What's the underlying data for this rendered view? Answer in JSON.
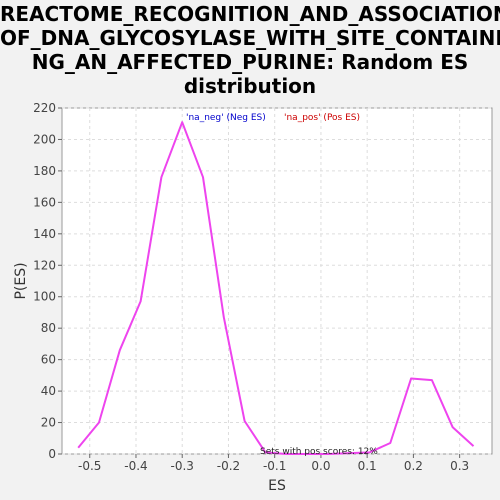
{
  "title_lines": [
    "REACTOME_RECOGNITION_AND_ASSOCIATION_",
    "OF_DNA_GLYCOSYLASE_WITH_SITE_CONTAINI",
    "NG_AN_AFFECTED_PURINE: Random ES",
    "distribution"
  ],
  "chart_data": {
    "type": "line",
    "title": "REACTOME_RECOGNITION_AND_ASSOCIATION_OF_DNA_GLYCOSYLASE_WITH_SITE_CONTAINING_AN_AFFECTED_PURINE: Random ES distribution",
    "xlabel": "ES",
    "ylabel": "P(ES)",
    "xlim": [
      -0.56,
      0.37
    ],
    "ylim": [
      0,
      220
    ],
    "xticks": [
      -0.5,
      -0.4,
      -0.3,
      -0.2,
      -0.1,
      0.0,
      0.1,
      0.2,
      0.3
    ],
    "xtick_labels": [
      "-0.5",
      "-0.4",
      "-0.3",
      "-0.2",
      "-0.1",
      "0.0",
      "0.1",
      "0.2",
      "0.3"
    ],
    "yticks": [
      0,
      20,
      40,
      60,
      80,
      100,
      120,
      140,
      160,
      180,
      200,
      220
    ],
    "grid": true,
    "legend": [
      {
        "label": "'na_neg' (Neg ES)",
        "color": "#0000cc"
      },
      {
        "label": "'na_pos' (Pos ES)",
        "color": "#cc0000"
      }
    ],
    "annotation": "Sets with pos scores: 12%",
    "series": [
      {
        "color": "#ee44ee",
        "x": [
          -0.525,
          -0.48,
          -0.435,
          -0.39,
          -0.345,
          -0.3,
          -0.255,
          -0.21,
          -0.165,
          -0.12,
          -0.075,
          0.015,
          0.105,
          0.15,
          0.195,
          0.24,
          0.285,
          0.33
        ],
        "y": [
          4,
          20,
          66,
          97,
          176,
          211,
          176,
          87,
          21,
          1,
          0,
          0,
          1,
          7,
          48,
          47,
          17,
          5
        ]
      }
    ]
  }
}
